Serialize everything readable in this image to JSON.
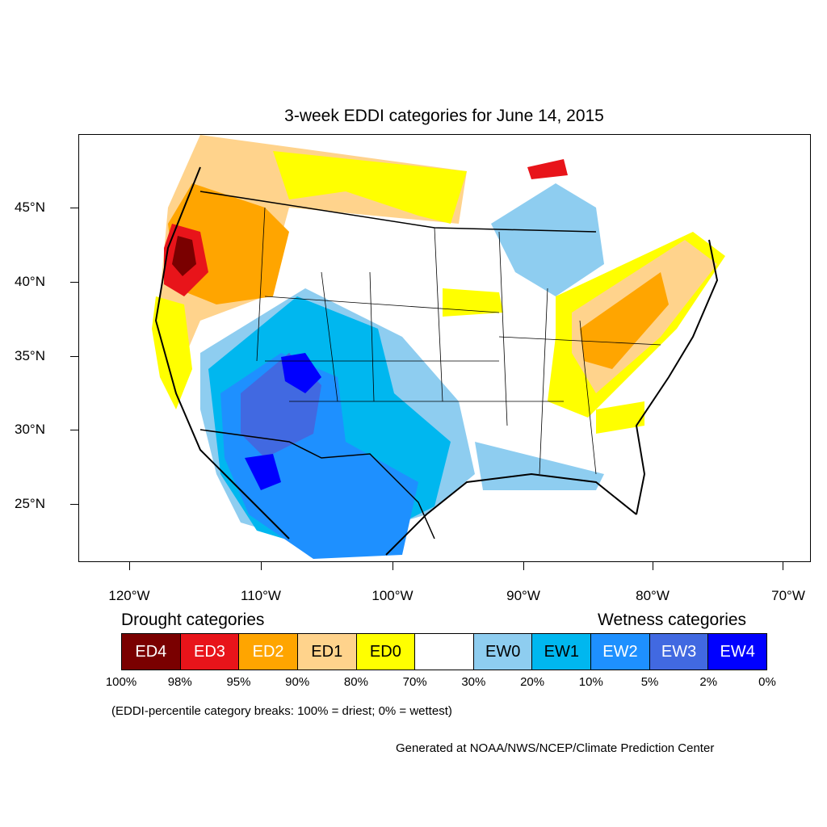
{
  "title": "3-week EDDI categories for June 14, 2015",
  "lat_labels": [
    "45°N",
    "40°N",
    "35°N",
    "30°N",
    "25°N"
  ],
  "lon_labels": [
    "120°W",
    "110°W",
    "100°W",
    "90°W",
    "80°W",
    "70°W"
  ],
  "legend": {
    "drought_heading": "Drought categories",
    "wetness_heading": "Wetness categories",
    "categories": [
      {
        "label": "ED4",
        "color": "#7a0000",
        "text_color": "#ffffff"
      },
      {
        "label": "ED3",
        "color": "#e8141a",
        "text_color": "#ffffff"
      },
      {
        "label": "ED2",
        "color": "#ffa500",
        "text_color": "#ffffff"
      },
      {
        "label": "ED1",
        "color": "#ffd38c",
        "text_color": "#000000"
      },
      {
        "label": "ED0",
        "color": "#ffff00",
        "text_color": "#000000"
      },
      {
        "label": "",
        "color": "#ffffff",
        "text_color": "#000000"
      },
      {
        "label": "EW0",
        "color": "#8ecdf0",
        "text_color": "#000000"
      },
      {
        "label": "EW1",
        "color": "#00b7ef",
        "text_color": "#000000"
      },
      {
        "label": "EW2",
        "color": "#1e90ff",
        "text_color": "#ffffff"
      },
      {
        "label": "EW3",
        "color": "#4169e1",
        "text_color": "#ffffff"
      },
      {
        "label": "EW4",
        "color": "#0000ff",
        "text_color": "#ffffff"
      }
    ],
    "breaks": [
      "100%",
      "98%",
      "95%",
      "90%",
      "80%",
      "70%",
      "30%",
      "20%",
      "10%",
      "5%",
      "2%",
      "0%"
    ]
  },
  "note": "(EDDI-percentile category breaks: 100% = driest; 0% = wettest)",
  "credit": "Generated at NOAA/NWS/NCEP/Climate Prediction Center",
  "colors": {
    "ED4": "#7a0000",
    "ED3": "#e8141a",
    "ED2": "#ffa500",
    "ED1": "#ffd38c",
    "ED0": "#ffff00",
    "EW0": "#8ecdf0",
    "EW1": "#00b7ef",
    "EW2": "#1e90ff",
    "EW3": "#4169e1",
    "EW4": "#0000ff"
  }
}
